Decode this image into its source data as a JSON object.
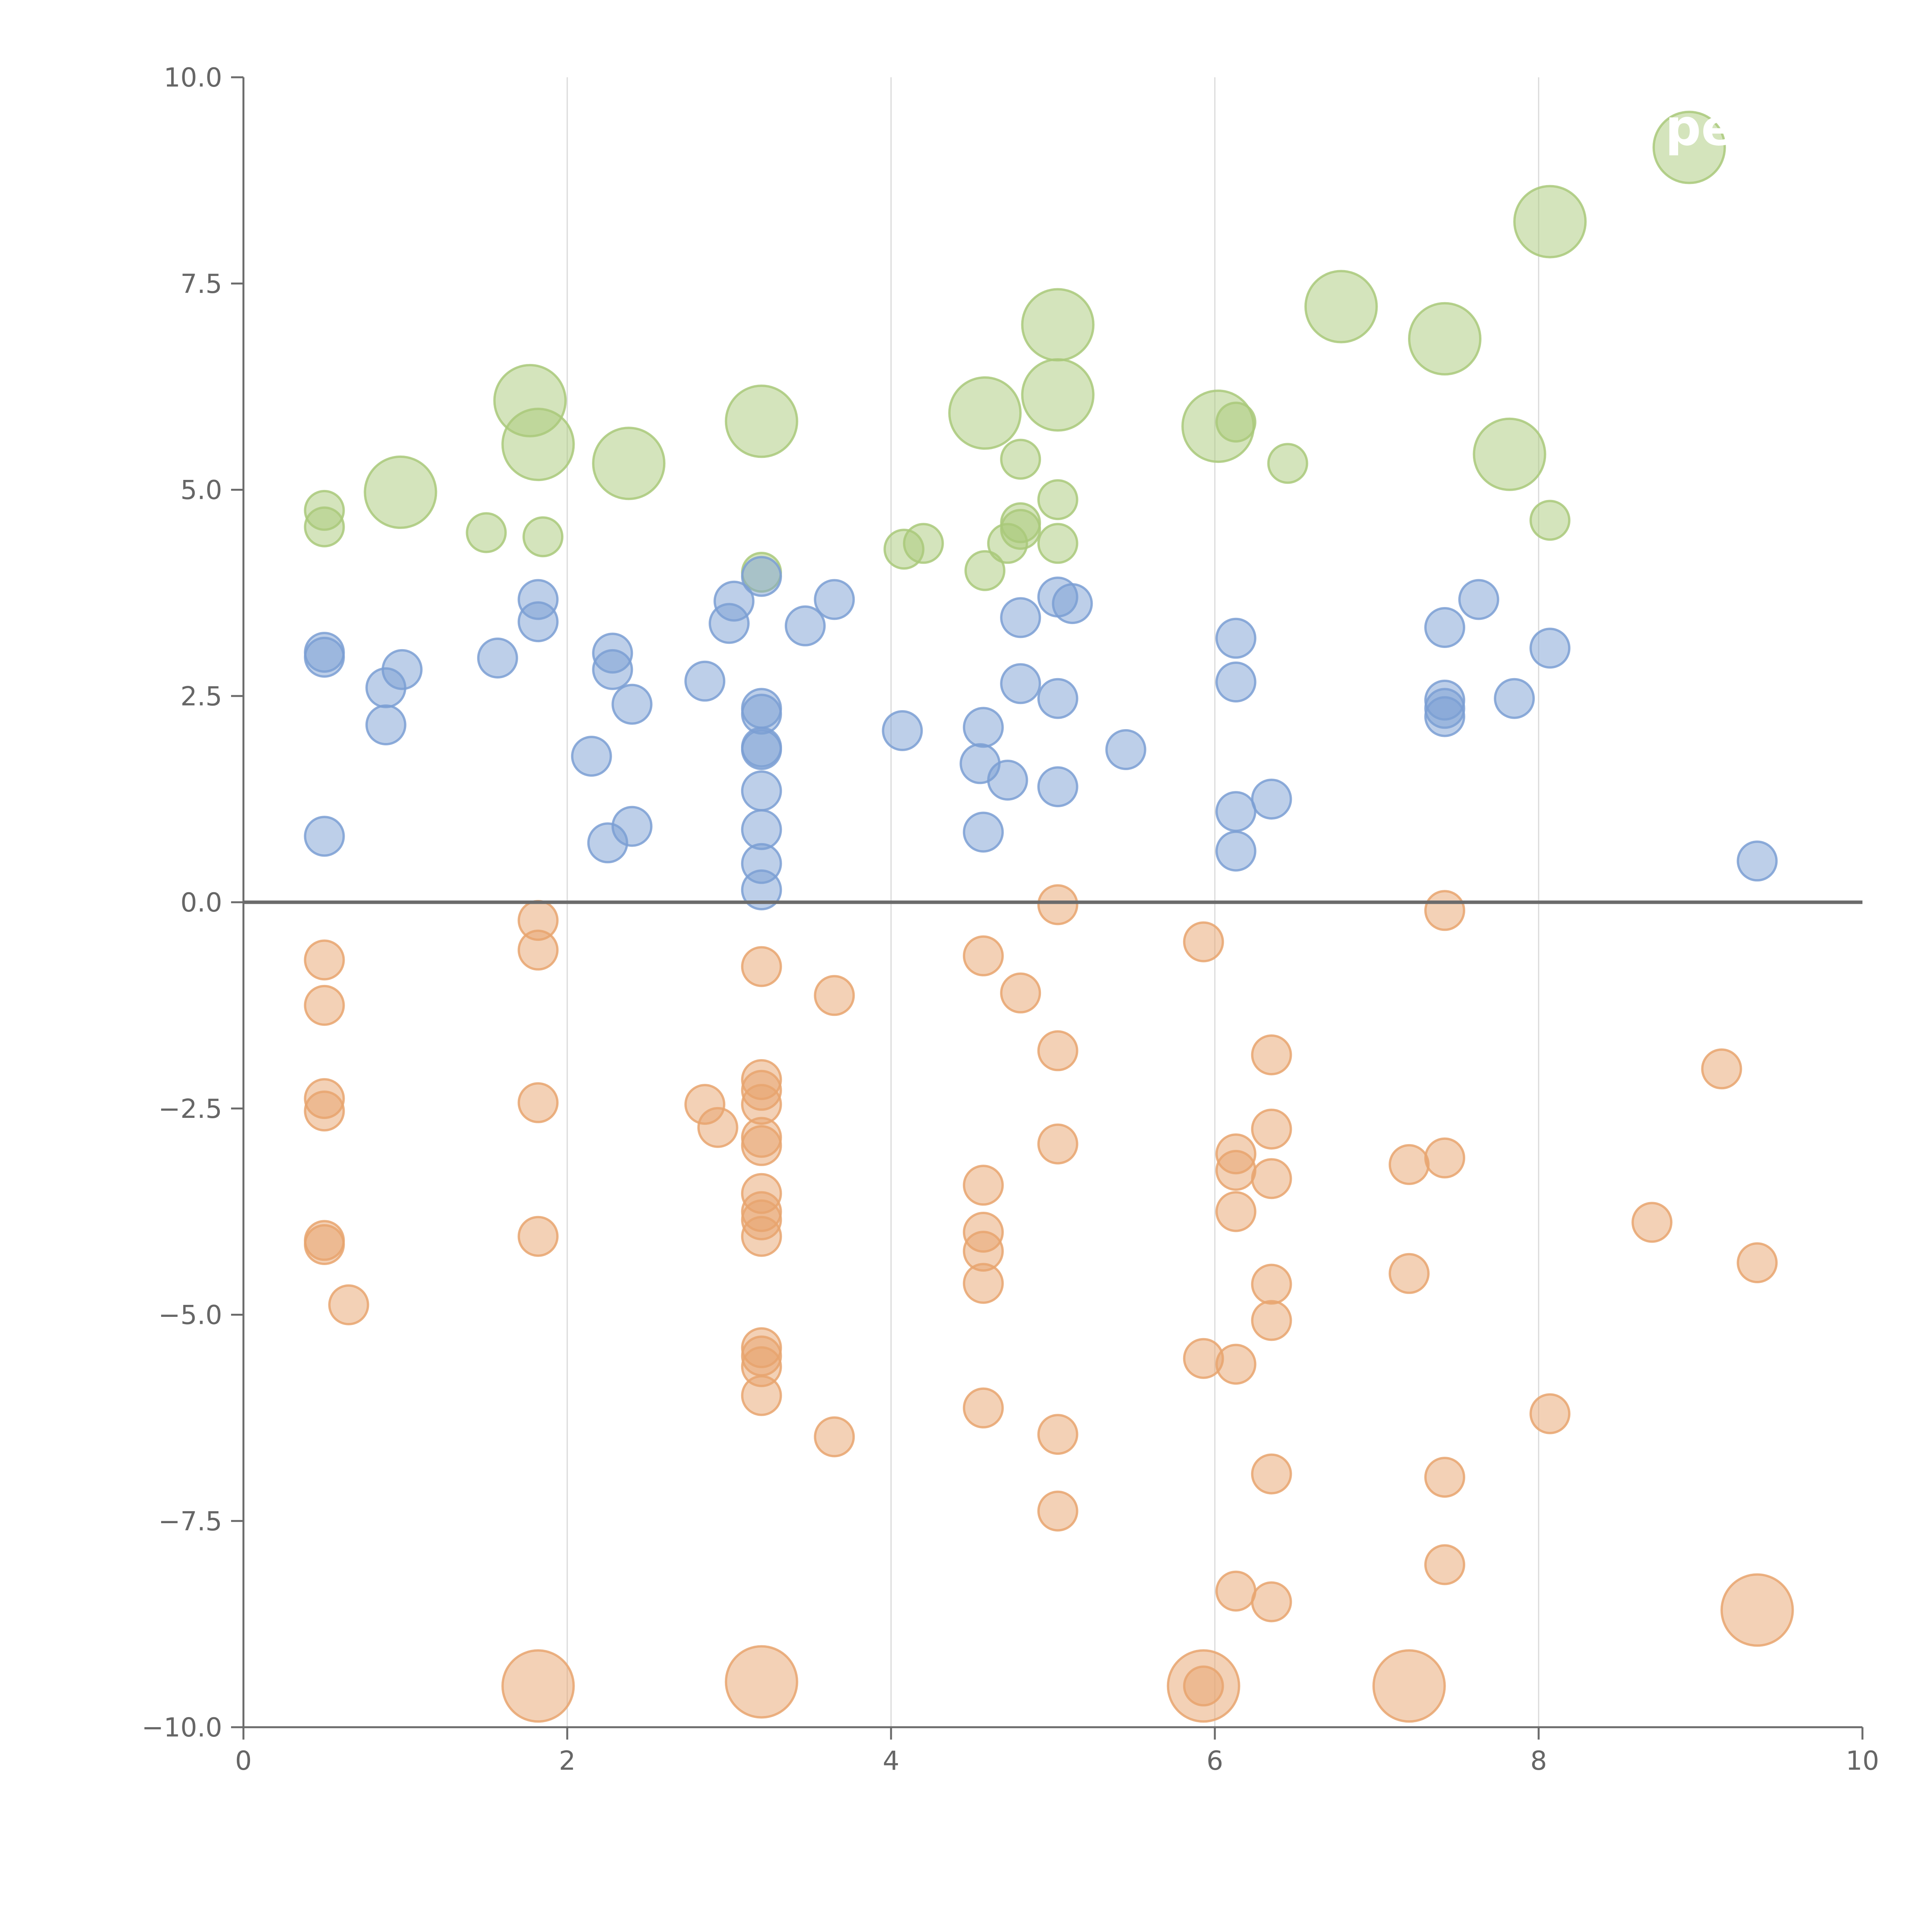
{
  "chart_data": {
    "type": "scatter",
    "title": "",
    "xlabel": "",
    "ylabel": "",
    "xlim": [
      0,
      10
    ],
    "ylim": [
      -10,
      10
    ],
    "x_ticks": [
      0,
      2,
      4,
      6,
      8,
      10
    ],
    "y_ticks": [
      -10,
      -7.5,
      -5,
      -2.5,
      0,
      2.5,
      5,
      7.5,
      10
    ],
    "x_tick_labels": [
      "0",
      "2",
      "4",
      "6",
      "8",
      "10"
    ],
    "y_tick_labels": [
      "−10.0",
      "−7.5",
      "−5.0",
      "−2.5",
      "0.0",
      "2.5",
      "5.0",
      "7.5",
      "10.0"
    ],
    "vertical_grid_at": [
      2,
      4,
      6,
      8
    ],
    "zero_line_y": 0,
    "corner_label": "pe",
    "marker_sizes_note": "size: 1 = small bubble, 2 = large bubble",
    "series": [
      {
        "name": "green",
        "color": "#a9c97a",
        "points": [
          [
            0.5,
            4.75,
            1
          ],
          [
            0.5,
            4.55,
            1
          ],
          [
            1.5,
            4.48,
            1
          ],
          [
            1.85,
            4.43,
            1
          ],
          [
            4.08,
            4.28,
            1
          ],
          [
            4.2,
            4.35,
            1
          ],
          [
            4.58,
            4.02,
            1
          ],
          [
            4.72,
            4.35,
            1
          ],
          [
            4.8,
            4.52,
            1
          ],
          [
            4.8,
            4.6,
            1
          ],
          [
            4.8,
            5.37,
            1
          ],
          [
            5.03,
            4.88,
            1
          ],
          [
            5.03,
            4.35,
            1
          ],
          [
            6.13,
            5.82,
            1
          ],
          [
            6.45,
            5.32,
            1
          ],
          [
            8.07,
            4.63,
            1
          ],
          [
            3.2,
            4.0,
            1
          ],
          [
            0.97,
            4.97,
            2
          ],
          [
            1.77,
            6.08,
            2
          ],
          [
            1.82,
            5.55,
            2
          ],
          [
            2.38,
            5.32,
            2
          ],
          [
            3.2,
            5.83,
            2
          ],
          [
            4.58,
            5.93,
            2
          ],
          [
            5.03,
            7.0,
            2
          ],
          [
            5.03,
            6.15,
            2
          ],
          [
            6.02,
            5.77,
            2
          ],
          [
            6.78,
            7.22,
            2
          ],
          [
            7.42,
            6.83,
            2
          ],
          [
            7.82,
            5.43,
            2
          ],
          [
            8.07,
            8.25,
            2
          ],
          [
            8.93,
            9.15,
            2
          ]
        ]
      },
      {
        "name": "blue",
        "color": "#7b9fd4",
        "points": [
          [
            0.5,
            3.03,
            1
          ],
          [
            0.5,
            2.97,
            1
          ],
          [
            0.5,
            0.8,
            1
          ],
          [
            0.88,
            2.6,
            1
          ],
          [
            0.88,
            2.15,
            1
          ],
          [
            0.98,
            2.82,
            1
          ],
          [
            1.57,
            2.96,
            1
          ],
          [
            1.82,
            3.67,
            1
          ],
          [
            1.82,
            3.4,
            1
          ],
          [
            2.15,
            1.77,
            1
          ],
          [
            2.25,
            0.72,
            1
          ],
          [
            2.28,
            3.02,
            1
          ],
          [
            2.28,
            2.82,
            1
          ],
          [
            2.4,
            2.4,
            1
          ],
          [
            2.4,
            0.92,
            1
          ],
          [
            2.85,
            2.68,
            1
          ],
          [
            3.0,
            3.38,
            1
          ],
          [
            3.03,
            3.65,
            1
          ],
          [
            3.2,
            3.95,
            1
          ],
          [
            3.2,
            2.35,
            1
          ],
          [
            3.2,
            2.28,
            1
          ],
          [
            3.2,
            1.88,
            1
          ],
          [
            3.2,
            1.85,
            1
          ],
          [
            3.2,
            1.35,
            1
          ],
          [
            3.2,
            0.88,
            1
          ],
          [
            3.2,
            0.47,
            1
          ],
          [
            3.2,
            0.15,
            1
          ],
          [
            3.47,
            3.35,
            1
          ],
          [
            3.65,
            3.67,
            1
          ],
          [
            4.07,
            2.08,
            1
          ],
          [
            4.57,
            2.12,
            1
          ],
          [
            4.55,
            1.68,
            1
          ],
          [
            4.57,
            0.85,
            1
          ],
          [
            4.72,
            1.48,
            1
          ],
          [
            4.8,
            3.45,
            1
          ],
          [
            4.8,
            2.65,
            1
          ],
          [
            5.03,
            3.7,
            1
          ],
          [
            5.03,
            2.47,
            1
          ],
          [
            5.03,
            1.4,
            1
          ],
          [
            5.12,
            3.62,
            1
          ],
          [
            5.45,
            1.85,
            1
          ],
          [
            6.13,
            3.2,
            1
          ],
          [
            6.13,
            2.67,
            1
          ],
          [
            6.13,
            1.1,
            1
          ],
          [
            6.13,
            0.62,
            1
          ],
          [
            6.35,
            1.25,
            1
          ],
          [
            7.42,
            3.33,
            1
          ],
          [
            7.42,
            2.45,
            1
          ],
          [
            7.42,
            2.35,
            1
          ],
          [
            7.42,
            2.25,
            1
          ],
          [
            7.63,
            3.67,
            1
          ],
          [
            7.85,
            2.47,
            1
          ],
          [
            8.07,
            3.08,
            1
          ],
          [
            9.35,
            0.5,
            1
          ]
        ]
      },
      {
        "name": "orange",
        "color": "#e8a46e",
        "points": [
          [
            0.5,
            -0.7,
            1
          ],
          [
            0.5,
            -1.25,
            1
          ],
          [
            0.5,
            -2.38,
            1
          ],
          [
            0.5,
            -2.53,
            1
          ],
          [
            0.5,
            -4.1,
            1
          ],
          [
            0.5,
            -4.15,
            1
          ],
          [
            0.65,
            -4.88,
            1
          ],
          [
            1.82,
            -0.22,
            1
          ],
          [
            1.82,
            -0.58,
            1
          ],
          [
            1.82,
            -2.43,
            1
          ],
          [
            1.82,
            -4.05,
            1
          ],
          [
            2.85,
            -2.45,
            1
          ],
          [
            2.93,
            -2.73,
            1
          ],
          [
            3.2,
            -0.78,
            1
          ],
          [
            3.2,
            -2.15,
            1
          ],
          [
            3.2,
            -2.28,
            1
          ],
          [
            3.2,
            -2.45,
            1
          ],
          [
            3.2,
            -2.85,
            1
          ],
          [
            3.2,
            -2.95,
            1
          ],
          [
            3.2,
            -3.53,
            1
          ],
          [
            3.2,
            -3.75,
            1
          ],
          [
            3.2,
            -3.85,
            1
          ],
          [
            3.2,
            -4.05,
            1
          ],
          [
            3.2,
            -5.4,
            1
          ],
          [
            3.2,
            -5.5,
            1
          ],
          [
            3.2,
            -5.63,
            1
          ],
          [
            3.2,
            -5.98,
            1
          ],
          [
            3.65,
            -1.13,
            1
          ],
          [
            3.65,
            -6.48,
            1
          ],
          [
            4.57,
            -0.65,
            1
          ],
          [
            4.57,
            -3.43,
            1
          ],
          [
            4.57,
            -4.0,
            1
          ],
          [
            4.57,
            -4.23,
            1
          ],
          [
            4.57,
            -4.62,
            1
          ],
          [
            4.57,
            -6.13,
            1
          ],
          [
            4.8,
            -1.1,
            1
          ],
          [
            5.03,
            -0.03,
            1
          ],
          [
            5.03,
            -1.8,
            1
          ],
          [
            5.03,
            -2.93,
            1
          ],
          [
            5.03,
            -6.45,
            1
          ],
          [
            5.03,
            -7.38,
            1
          ],
          [
            5.93,
            -0.48,
            1
          ],
          [
            5.93,
            -5.53,
            1
          ],
          [
            5.93,
            -9.5,
            1
          ],
          [
            6.13,
            -3.05,
            1
          ],
          [
            6.13,
            -3.25,
            1
          ],
          [
            6.13,
            -3.75,
            1
          ],
          [
            6.13,
            -5.6,
            1
          ],
          [
            6.13,
            -8.35,
            1
          ],
          [
            6.35,
            -1.85,
            1
          ],
          [
            6.35,
            -2.75,
            1
          ],
          [
            6.35,
            -3.35,
            1
          ],
          [
            6.35,
            -4.63,
            1
          ],
          [
            6.35,
            -5.07,
            1
          ],
          [
            6.35,
            -6.93,
            1
          ],
          [
            6.35,
            -8.48,
            1
          ],
          [
            7.2,
            -3.18,
            1
          ],
          [
            7.2,
            -4.5,
            1
          ],
          [
            7.42,
            -0.1,
            1
          ],
          [
            7.42,
            -3.1,
            1
          ],
          [
            7.42,
            -6.97,
            1
          ],
          [
            7.42,
            -8.03,
            1
          ],
          [
            8.07,
            -6.2,
            1
          ],
          [
            8.7,
            -3.88,
            1
          ],
          [
            9.13,
            -2.02,
            1
          ],
          [
            9.35,
            -4.37,
            1
          ],
          [
            1.82,
            -9.5,
            2
          ],
          [
            3.2,
            -9.45,
            2
          ],
          [
            5.93,
            -9.5,
            2
          ],
          [
            7.2,
            -9.5,
            2
          ],
          [
            9.35,
            -8.58,
            2
          ]
        ]
      }
    ]
  }
}
